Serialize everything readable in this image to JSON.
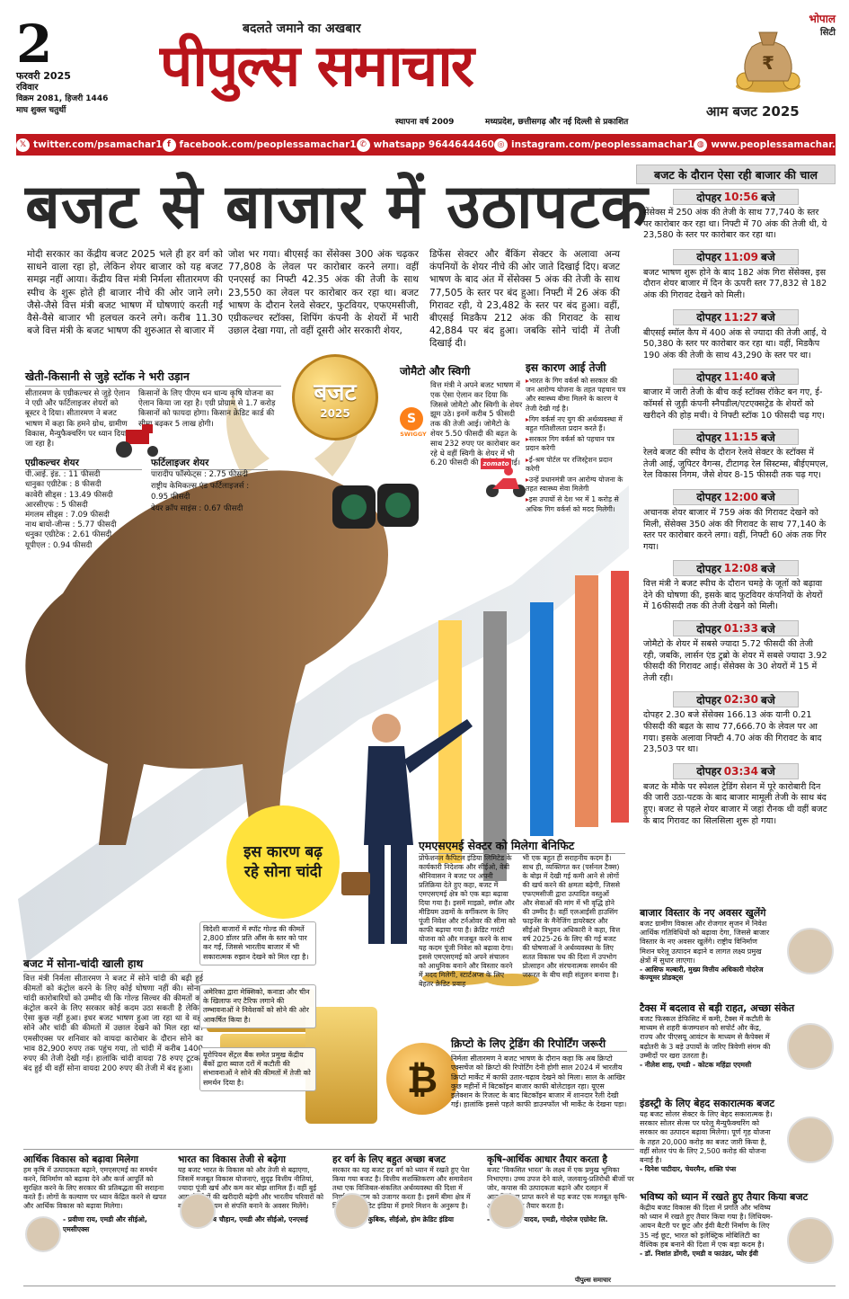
{
  "masthead": {
    "day": "2",
    "month_year": "फरवरी 2025",
    "weekday": "रविवार",
    "samvat": "विक्रम 2081, हिजरी 1446",
    "tithi": "माघ शुक्ल चतुर्थी",
    "tagline": "बदलते जमाने का अखबार",
    "paper_name": "पीपुल्स समाचार",
    "established": "स्थापना वर्ष 2009",
    "publication": "मध्यप्रदेश, छत्तीसगढ़ और नई दिल्ली से प्रकाशित",
    "city": "भोपाल",
    "city_edition": "सिटी",
    "budget_edition": "आम बजट 2025",
    "colors": {
      "brand_red": "#b8141b",
      "gold": "#e2b44a"
    }
  },
  "social": [
    {
      "icon": "x-icon",
      "text": "twitter.com/psamachar1"
    },
    {
      "icon": "facebook-icon",
      "text": "facebook.com/peoplessamachar1"
    },
    {
      "icon": "whatsapp-icon",
      "text": "whatsapp 9644644460"
    },
    {
      "icon": "instagram-icon",
      "text": "instagram.com/peoplessamachar1"
    },
    {
      "icon": "globe-icon",
      "text": "www.peoplessamachar.in"
    }
  ],
  "headline": "बजट से बाजार में उठापटक",
  "intro": [
    "मोदी सरकार का केंद्रीय बजट 2025 भले ही हर वर्ग को साधने वाला रहा हो, लेकिन शेयर बाजार को यह बजट समझ नहीं आया। केंद्रीय वित्त मंत्री निर्मला सीतारमण की स्पीच के शुरू होते ही बाजार नीचे की ओर जाने लगे। जैसे-जैसे वित्त मंत्री बजट भाषण में घोषणाएं करती गईं वैसे-वैसे बाजार भी हलचल करने लगे। करीब 11.30 बजे वित्त मंत्री के बजट भाषण की शुरुआत से बाजार में",
    "जोश भर गया। बीएसई का सेंसेक्स 300 अंक चढ़कर 77,808 के लेवल पर कारोबार करने लगा। वहीं एनएसई का निफ्टी 42.35 अंक की तेजी के साथ 23,550 का लेवल पर कारोबार कर रहा था। बजट भाषण के दौरान रेलवे सेक्टर, फुटवियर, एफएमसीजी, एग्रीकल्चर स्टॉक्स, शिपिंग कंपनी के शेयरों में भारी उछाल देखा गया, तो वहीं दूसरी ओर सरकारी शेयर,",
    "डिफेंस सेक्टर और बैंकिंग सेक्टर के अलावा अन्य कंपनियों के शेयर नीचे की ओर जाते दिखाई दिए। बजट भाषण के बाद अंत में सेंसेक्स 5 अंक की तेजी के साथ 77,505 के स्तर पर बंद हुआ। निफ्टी में 26 अंक की गिरावट रही, ये 23,482 के स्तर पर बंद हुआ। वहीं, बीएसई मिडकैप 212 अंक की गिरावट के साथ 42,884 पर बंद हुआ। जबकि सोने चांदी में तेजी दिखाई दी।"
  ],
  "farm": {
    "title": "खेती-किसानी से जुड़े स्टॉक ने भरी उड़ान",
    "left": "सीतारमण के एग्रीकल्चर से जुड़े ऐलान ने एग्री और फर्टिलाइजर शेयरों को बूस्टर दे दिया। सीतारमण ने बजट भाषण में कहा कि हमने ग्रोथ, ग्रामीण विकास, मैन्युफैक्चरिंग पर ध्यान दिया जा रहा है।",
    "right": "किसानों के लिए पीएम धन धान्य कृषि योजना का ऐलान किया जा रहा है। एग्री प्रोग्राम से 1.7 करोड़ किसानों को फायदा होगा। किसान क्रेडिट कार्ड की सीमा बढ़कर 5 लाख होगी।",
    "agri_title": "एग्रीकल्चर शेयर",
    "agri": [
      "पी.आई. इंड. : 11 फीसदी",
      "धानुका एग्रीटेक : 8 फीसदी",
      "कावेरी सीड्स : 13.49 फीसदी",
      "आरसीएफ : 5 फीसदी",
      "मंगलम सीड्स : 7.09 फीसदी",
      "नाथ बायो-जीन्स : 5.77 फीसदी",
      "धनुका एग्रीटेक : 2.61 फीसदी",
      "यूपीएल : 0.94 फीसदी"
    ],
    "fert_title": "फर्टिलाइजर शेयर",
    "fert": [
      "पारादीप फॉस्फेट्स : 2.75 फीसदी",
      "राष्ट्रीय केमिकल्स एंड फर्टिलाइजर्स : 0.95 फीसदी",
      "बेयर क्रॉप साइंस : 0.67 फीसदी"
    ]
  },
  "coin": {
    "line1": "बजट",
    "line2": "2025"
  },
  "zomato": {
    "title": "जोमैटो और स्विगी",
    "text": "वित्त मंत्री ने अपने बजट भाषण में एक ऐसा ऐलान कर दिया कि जिससे जोमैटो और स्विगी के शेयर झूम उठे। इनमें करीब 5 फीसदी तक की तेजी आई। जोमैटो के शेयर 5.50 फीसदी की बढ़त के साथ 232 रुपए पर कारोबार कर रहे थे वहीं स्विगी के शेयर में भी 6.20 फीसदी की तेजी देखी गई।",
    "swiggy": "SWIGGY",
    "zomato_logo": "zomato"
  },
  "reason": {
    "title": "इस कारण आई तेजी",
    "items": [
      "भारत के गिग वर्कर्स को सरकार की जन आरोग्य योजना के तहत पहचान पत्र और स्वास्थ्य बीमा मिलने के कारण ये तेजी देखी गई है।",
      "गिग वर्कर्स नए युग की अर्थव्यवस्था में बहुत गतिशीलता प्रदान करते हैं।",
      "सरकार गिग वर्कर्स को पहचान पत्र प्रदान करेगी",
      "ई-श्रम पोर्टल पर रजिस्ट्रेशन प्रदान करेगी",
      "उन्हें प्रधानमंत्री जन आरोग्य योजना के तहत स्वास्थ्य सेवा मिलेगी",
      "इस उपायों से देश भर में 1 करोड़ से अधिक गिग वर्कर्स को मदद मिलेगी।"
    ]
  },
  "bubble": {
    "text": "इस कारण बढ़ रहे सोना चांदी"
  },
  "gold": {
    "title": "बजट में सोना-चांदी खाली हाथ",
    "text": "वित्त मंत्री निर्मला सीतारमण ने बजट में सोने चांदी की बढ़ी हुई कीमतों को कंट्रोल करने के लिए कोई घोषणा नहीं की। सोना-चांदी कारोबारियों को उम्मीद थी कि गोल्ड सिल्वर की कीमतों को कंट्रोल करने के लिए सरकार कोई कदम उठा सकती है लेकिन ऐसा कुछ नहीं हुआ। इधर बजट भाषण हुआ जा रहा था वे वहां सोने और चांदी की कीमतों में उछाल देखने को मिल रहा था। एमसीएक्स पर शनिवार को वायदा कारोबार के दौरान सोने का भाव 82,900 रुपए तक पहुंच गया, तो चांदी में करीब 1400 रुपए की तेजी देखी गई। हालांकि चांदी वायदा 78 रुपए टूटकर बंद हुई थी वहीं सोना वायदा 200 रुपए की तेजी में बंद हुआ।",
    "boxes": [
      "विदेशी बाजारों में स्पॉट गोल्ड की कीमतें 2,800 डॉलर प्रति औंस के स्तर को पार कर गईं, जिससे भारतीय बाजार में भी सकारात्मक रुझान देखने को मिल रहा है।",
      "अमेरिका द्वारा मेक्सिको, कनाडा और चीन के खिलाफ नए टैरिफ लगाने की तम्भावनाओं ने निवेशकों को सोने की ओर आकर्षित किया है।",
      "यूरोपियन सेंट्रल बैंक समेत प्रमुख केंद्रीय बैंकों द्वारा ब्याज दरों में कटौती की संभावनाओं ने सोने की कीमतों में तेजी को समर्थन दिया है।"
    ]
  },
  "msme": {
    "title": "एमएसएमई सेक्टर को मिलेगा बेनिफिट",
    "left": "प्रोफेशनल कैपिटल इंडिया लिमिटेड के कार्यकारी निदेशक और सीईओ, वेबी श्रीनिवासन ने बजट पर अपनी प्रतिक्रिया देते हुए कहा, बजट में एमएसएमई क्षेत्र को एक बड़ा बढ़ावा दिया गया है। इसमें माइक्रो, स्मॉल और मीडियम उद्यमों के वर्गीकरण के लिए पूंजी निवेश और टर्नओवर की सीमा को काफी बढ़ाया गया है। क्रेडिट गारंटी योजना को और मजबूत करने के साथ यह कदम पूंजी निवेश को बढ़ावा देगा। इससे एमएसएमई को अपने संचालन को आधुनिक बनाने और विस्तार करने में मदद मिलेगी, स्टार्टअप्स के लिए बेहतर क्रेडिट प्रवाह",
    "right": "भी एक बहुत ही सराहनीय कदम है। साथ ही, व्यक्तिगत कर (पर्सनल टैक्स) के बोझ में देखी गई कमी आने से लोगों की खर्च करने की क्षमता बढ़ेगी, जिससे एफएमसीजी द्वारा उत्पादित वस्तुओं और सेवाओं की मांग में भी वृद्धि होने की उम्मीद है। वहीं एलआईसी हाउसिंग फाइनेंस के मैनेजिंग डायरेक्टर और सीईओ त्रिभुवन अधिकारी ने कहा, वित्त वर्ष 2025-26 के लिए की गई बजट की घोषणाओं ने अर्थव्यवस्था के लिए सतत विकास पथ की दिशा में उपभोग प्रोत्साहन और संरचनात्मक समर्थन की जरूरत के बीच सही संतुलन बनाया है।"
  },
  "crypto": {
    "title": "क्रिप्टो के लिए ट्रेडिंग की रिपोर्टिंग जरूरी",
    "text": "निर्मला सीतारमण ने बजट भाषण के दौरान कहा कि अब क्रिप्टो एक्सचेंज को क्रिप्टो की रिपोर्टिंग देनी होगी साल 2024 में भारतीय क्रिप्टो मार्केट में काफी उतार-चढ़ाव देखने को मिला। साल के आखिर कुछ महीनों में बिटकॉइन बाजार काफी बोलेटाइल रहा। यूएस इलेक्शन के रिजल्ट के बाद बिटकॉइन बाजार में शानदार रैली देखी गई। हालांकि इससे पहले काफी डाउनफॉल भी मार्केट के देखना पड़ा।"
  },
  "timeline_title": "बजट के दौरान ऐसा रही बाजार की चाल",
  "timeline": [
    {
      "label": "दोपहर",
      "time": "10:56",
      "suffix": "बजे",
      "text": "सेंसेक्स में 250 अंक की तेजी के साथ 77,740 के स्तर पर कारोबार कर रहा था। निफ्टी में 70 अंक की तेजी थी, ये 23,580 के स्तर पर कारोबार कर रहा था।"
    },
    {
      "label": "दोपहर",
      "time": "11:09",
      "suffix": "बजे",
      "text": "बजट भाषण शुरू होने के बाद 182 अंक गिरा सेंसेक्स, इस दौरान शेयर बाजार में दिन के ऊपरी स्तर 77,832 से 182 अंक की गिरावट देखने को मिली।"
    },
    {
      "label": "दोपहर",
      "time": "11:27",
      "suffix": "बजे",
      "text": "बीएसई स्मॉल कैप में 400 अंक से ज्यादा की तेजी आई, ये 50,380 के स्तर पर कारोबार कर रहा था। वहीं, मिडकैप 190 अंक की तेजी के साथ 43,290 के स्तर पर था।"
    },
    {
      "label": "दोपहर",
      "time": "11:40",
      "suffix": "बजे",
      "text": "बाजार में जारी तेजी के बीच कई स्टॉक्स रॉकेट बन गए, ई-कॉमर्स से जुड़ी कंपनी स्नैपडील/एटएक्सट्रेड के शेयरों को खरीदने की होड़ मची। ये निफ्टी स्टॉक 10 फीसदी चढ़ गए।"
    },
    {
      "label": "दोपहर",
      "time": "11:15",
      "suffix": "बजे",
      "text": "रेलवे बजट की स्पीच के दौरान रेलवे सेक्टर के स्टॉक्स में तेजी आई, जुपिटर वैगन्स, टीटागढ़ रेल सिस्टम्स, बीईएमएल, रेल विकास निगम, जैसे शेयर 8-15 फीसदी तक चढ़ गए।"
    },
    {
      "label": "दोपहर",
      "time": "12:00",
      "suffix": "बजे",
      "text": "अचानक शेयर बाजार में 759 अंक की गिरावट देखने को मिली, सेंसेक्स 350 अंक की गिरावट के साथ 77,140 के स्तर पर कारोबार करने लगा। वहीं, निफ्टी 60 अंक तक गिर गया।"
    },
    {
      "label": "दोपहर",
      "time": "12:08",
      "suffix": "बजे",
      "text": "वित्त मंत्री ने बजट स्पीच के दौरान चमड़े के जूतों को बढ़ावा देने की घोषणा की, इसके बाद फुटवियर कंपनियों के शेयरों में 16फीसदी तक की तेजी देखने को मिली।"
    },
    {
      "label": "दोपहर",
      "time": "01:33",
      "suffix": "बजे",
      "text": "जोमैटो के शेयर में सबसे ज्यादा 5.72 फीसदी की तेजी रही, जबकि, लार्सन एंड टुब्रो के शेयर में सबसे ज्यादा 3.92 फीसदी की गिरावट आई। सेंसेक्स के 30 शेयरों में 15 में तेजी रही।"
    },
    {
      "label": "दोपहर",
      "time": "02:30",
      "suffix": "बजे",
      "text": "दोपहर 2.30 बजे सेंसेक्स 166.13 अंक यानी 0.21 फीसदी की बढ़त के साथ 77,666.70 के लेवल पर आ गया। इसके अलावा निफ्टी 4.70 अंक की गिरावट के बाद 23,503 पर था।"
    },
    {
      "label": "दोपहर",
      "time": "03:34",
      "suffix": "बजे",
      "text": "बजट के मौके पर स्पेशल ट्रेडिंग सेशन में पूरे कारोबारी दिन की जारी उठा-पटक के बाद बाजार मामूली तेजी के साथ बंद हुए। बजट से पहले शेयर बाजार में जहां रौनक थी वहीं बजट के बाद गिरावट का सिलसिला शुरू हो गया।"
    }
  ],
  "opinions_right": [
    {
      "title": "बाजार विस्तार के नए अवसर खुलेंगे",
      "text": "बजट ग्रामीण विकास और रोजगार सृजन में निवेश आर्थिक गतिविधियों को बढ़ावा देगा, जिससे बाजार विस्तार के नए अवसर खुलेंगे। राष्ट्रीय विनिर्माण मिशन घरेलू उत्पादन बढ़ाने व लागत लक्ष्य प्रमुख क्षेत्रों में सुधार लाएगा।",
      "author": "- आसिफ मल्बारी, मुख्य वित्तीय अधिकारी गोदरेज कंज्यूमर प्रोडक्ट्स"
    },
    {
      "title": "टैक्स में बदलाव से बड़ी राहत, अच्छा संकेत",
      "text": "बजट फिस्कल डेफिसिट में कमी, टैक्स में कटौती के माध्यम से शहरी कंजम्पशन को सपोर्ट और केंद्र, राज्य और पीएसयू आवंटन के माध्यम से कैपेक्स में बढ़ोतरी के 3 बड़े उपायों के जरिए त्रिवेणी संगम की उम्मीदों पर खरा उतरता है।",
      "author": "- नीलेश शाह, एमडी - कोटक महिंद्रा एएमसी"
    },
    {
      "title": "इंडस्ट्री के लिए बेहद सकारात्मक बजट",
      "text": "यह बजट सोलर सेक्टर के लिए बेहद सकारात्मक है। सरकार सोलर सेल्स पर घरेलू मैन्युफैक्चरिंग को सरकार का उत्पादन बढ़ावा मिलेगा। पूर्ण गृह योजना के तहत 20,000 करोड़ का बजट जारी किया है, वहीं सोलर पंप के लिए 2,500 करोड़ की योजना बनाई है।",
      "author": "- दिनेश पाटीदार, चेयरमैन, शक्ति पंप्स"
    },
    {
      "title": "भविष्य को ध्यान में रखते हुए तैयार किया बजट",
      "text": "केंद्रीय बजट विकास की दिशा में प्रगति और भविष्य को ध्यान में रखते हुए तैयार किया गया है। लिथियम-आयन बैटरी पर छूट और ईवी बैटरी निर्माण के लिए 35 नई छूट, भारत को इलेक्ट्रिक मोबिलिटी का वैश्विक हब बनाने की दिशा में एक बड़ा कदम है।",
      "author": "- डॉ. निशांत डोंगरी, एमडी व फाउंडर, प्योर ईवी"
    }
  ],
  "opinions_bottom": [
    {
      "title": "आर्थिक विकास को बढ़ावा मिलेगा",
      "text": "हम कृषि में उत्पादकता बढ़ाने, एमएसएमई का समर्थन करने, विनिर्माण को बढ़ावा देने और कर्ज आपूर्ति को सुरक्षित करने के लिए सरकार की प्रतिबद्धता की सराहना करते हैं। लोगों के कल्याण पर ध्यान केंद्रित करने से खपत और आर्थिक विकास को बढ़ावा मिलेगा।",
      "author": "- प्रवीणा राय, एमडी और सीईओ, एमसीएक्स"
    },
    {
      "title": "भारत का विकास तेजी से बढ़ेगा",
      "text": "यह बजट भारत के विकास को और तेजी से बढ़ाएगा, जिसमें मजबूत विकास योजनाएं, सुदृढ़ वित्तीय नीतियां, ज्यादा पूंजी खर्च और कम कर बोझ शामिल हैं। वहीं बुई आय से लोगों की खरीदारी बढ़ेगी और भारतीय परिवारों को बाजारों के माध्यम से संपत्ति बनाने के अवसर मिलेंगे।",
      "author": "- आशीष चौहान, एमडी और सीईओ, एनएसई"
    },
    {
      "title": "हर वर्ग के लिए बहुत अच्छा बजट",
      "text": "सरकार का यह बजट हर वर्ग को ध्यान में रखते हुए पेश किया गया बजट है। वित्तीय सशक्तिकरण और समावेशन तथा एक विजिबल-संकलित अर्थव्यवस्था की दिशा में निर्णायक कदम को उजागर करता है। इसमें बीमा क्षेत्र में विदेश होम क्रेडिट इंडिया में हमारे मिशन के अनुरूप है।",
      "author": "- ओल्ड्रेज कुबिक, सीईओ, होम क्रेडिट इंडिया"
    },
    {
      "title": "कृषि-आर्थिक आधार तैयार करता है",
      "text": "बजट 'विकसित भारत' के लक्ष्य में एक प्रमुख भूमिका निभाएगा। उच्च उपज देने वाले, जलवायु-प्रतिरोधी बीजों पर जोर, कपास की उत्पादकता बढ़ाने और दलहन में आत्मनिर्भरता प्राप्त करने से यह बजट एक मजबूत कृषि-आर्थिक आधार तैयार करता है।",
      "author": "- बलराम सिंह यादव, एमडी, गोदरेज एग्रोवेट लि."
    }
  ],
  "credit": "पीपुल्स समाचार"
}
